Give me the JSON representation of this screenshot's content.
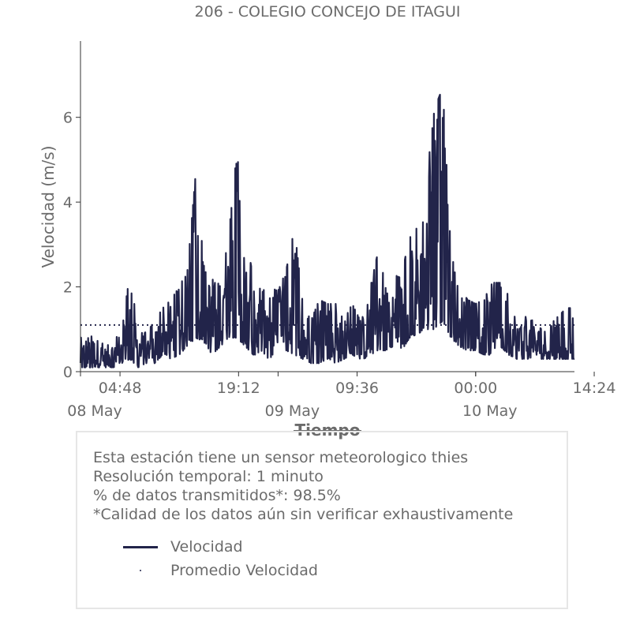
{
  "chart_data": {
    "type": "line",
    "title": "206 - COLEGIO CONCEJO DE ITAGUI",
    "xlabel": "Tiempo",
    "ylabel": "Velocidad (m/s)",
    "ylim": [
      0,
      7.8
    ],
    "xlim_hours": [
      0,
      60
    ],
    "yticks": [
      0,
      2,
      4,
      6
    ],
    "xtick_labels": [
      "04:48",
      "19:12",
      "09:36",
      "00:00",
      "14:24"
    ],
    "xtick_hours": [
      4.8,
      19.2,
      33.6,
      48.0,
      62.4
    ],
    "date_labels": [
      "08 May",
      "09 May",
      "10 May"
    ],
    "date_hours": [
      0,
      24,
      48
    ],
    "series": [
      {
        "name": "Velocidad",
        "color": "#22244a",
        "envelope": [
          [
            0,
            0.1,
            0.8
          ],
          [
            1,
            0.1,
            0.9
          ],
          [
            2,
            0.1,
            0.8
          ],
          [
            3,
            0.1,
            0.6
          ],
          [
            4,
            0.1,
            0.7
          ],
          [
            5,
            0.2,
            1.0
          ],
          [
            6,
            0.3,
            2.3
          ],
          [
            7,
            0.1,
            1.1
          ],
          [
            8,
            0.2,
            0.9
          ],
          [
            9,
            0.2,
            1.2
          ],
          [
            10,
            0.4,
            1.5
          ],
          [
            11,
            0.3,
            1.7
          ],
          [
            12,
            0.4,
            2.0
          ],
          [
            13,
            0.6,
            2.4
          ],
          [
            14,
            0.8,
            4.7
          ],
          [
            15,
            0.7,
            2.5
          ],
          [
            16,
            0.4,
            2.3
          ],
          [
            17,
            0.6,
            2.0
          ],
          [
            18,
            0.8,
            3.2
          ],
          [
            19,
            0.8,
            5.2
          ],
          [
            20,
            0.6,
            3.3
          ],
          [
            21,
            0.4,
            2.2
          ],
          [
            22,
            0.4,
            1.9
          ],
          [
            23,
            0.3,
            2.0
          ],
          [
            24,
            0.6,
            1.9
          ],
          [
            25,
            0.5,
            2.4
          ],
          [
            26,
            0.4,
            3.4
          ],
          [
            27,
            0.3,
            1.6
          ],
          [
            28,
            0.2,
            1.2
          ],
          [
            29,
            0.2,
            1.7
          ],
          [
            30,
            0.3,
            1.6
          ],
          [
            31,
            0.2,
            1.6
          ],
          [
            32,
            0.3,
            1.2
          ],
          [
            33,
            0.4,
            1.6
          ],
          [
            34,
            0.3,
            1.2
          ],
          [
            35,
            0.3,
            1.8
          ],
          [
            36,
            0.5,
            2.7
          ],
          [
            37,
            0.5,
            2.2
          ],
          [
            38,
            0.6,
            2.3
          ],
          [
            39,
            0.5,
            2.2
          ],
          [
            40,
            0.8,
            3.3
          ],
          [
            41,
            0.9,
            3.7
          ],
          [
            42,
            1.0,
            4.5
          ],
          [
            43,
            1.0,
            6.2
          ],
          [
            44,
            1.2,
            6.7
          ],
          [
            45,
            0.8,
            2.8
          ],
          [
            46,
            0.6,
            2.0
          ],
          [
            47,
            0.5,
            1.7
          ],
          [
            48,
            0.5,
            1.6
          ],
          [
            49,
            0.4,
            1.7
          ],
          [
            50,
            0.4,
            2.1
          ],
          [
            51,
            0.6,
            2.1
          ],
          [
            52,
            0.4,
            1.8
          ],
          [
            53,
            0.3,
            1.4
          ],
          [
            54,
            0.3,
            1.3
          ],
          [
            55,
            0.3,
            1.2
          ],
          [
            56,
            0.3,
            1.0
          ],
          [
            57,
            0.3,
            1.1
          ],
          [
            58,
            0.3,
            1.3
          ],
          [
            59,
            0.3,
            1.5
          ]
        ]
      },
      {
        "name": "Promedio Velocidad",
        "color": "#22244a",
        "value": 1.1
      }
    ],
    "legend_position": "inside-info-box"
  },
  "info": {
    "line1": "Esta estación tiene un sensor meteorologico thies",
    "line2": "Resolución temporal: 1 minuto",
    "line3": "% de datos transmitidos*: 98.5%",
    "line4": "*Calidad de los datos aún sin verificar exhaustivamente"
  },
  "legend": {
    "velocidad": "Velocidad",
    "promedio": "Promedio Velocidad"
  }
}
